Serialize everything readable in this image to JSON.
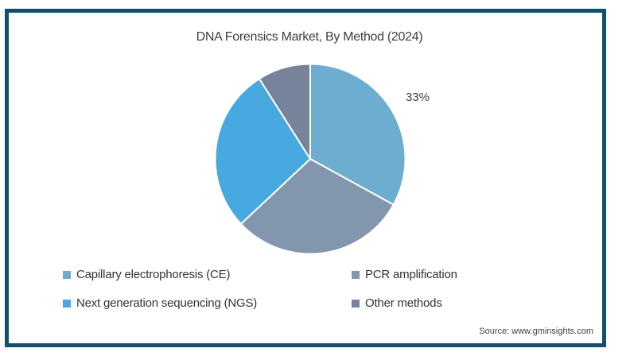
{
  "frame": {
    "border_color": "#11506B",
    "background": "#FFFFFF"
  },
  "title": "DNA Forensics Market, By Method (2024)",
  "source": "Source: www.gminsights.com",
  "chart_data": {
    "type": "pie",
    "title": "DNA Forensics Market, By Method (2024)",
    "labels": [
      "Capillary electrophoresis (CE)",
      "PCR amplification",
      "Next generation sequencing (NGS)",
      "Other methods"
    ],
    "values": [
      33,
      30,
      28,
      9
    ],
    "unit": "%",
    "colors": [
      "#6CADD0",
      "#8296AE",
      "#47A9E0",
      "#76839B"
    ],
    "data_labels": [
      "33%",
      "",
      "",
      ""
    ],
    "start_angle_deg": 0,
    "direction": "clockwise",
    "slice_border_color": "#FFFFFF",
    "legend_position": "bottom"
  },
  "legend": {
    "items": [
      {
        "label": "Capillary electrophoresis (CE)"
      },
      {
        "label": "PCR amplification"
      },
      {
        "label": "Next generation sequencing (NGS)"
      },
      {
        "label": "Other methods"
      }
    ]
  }
}
